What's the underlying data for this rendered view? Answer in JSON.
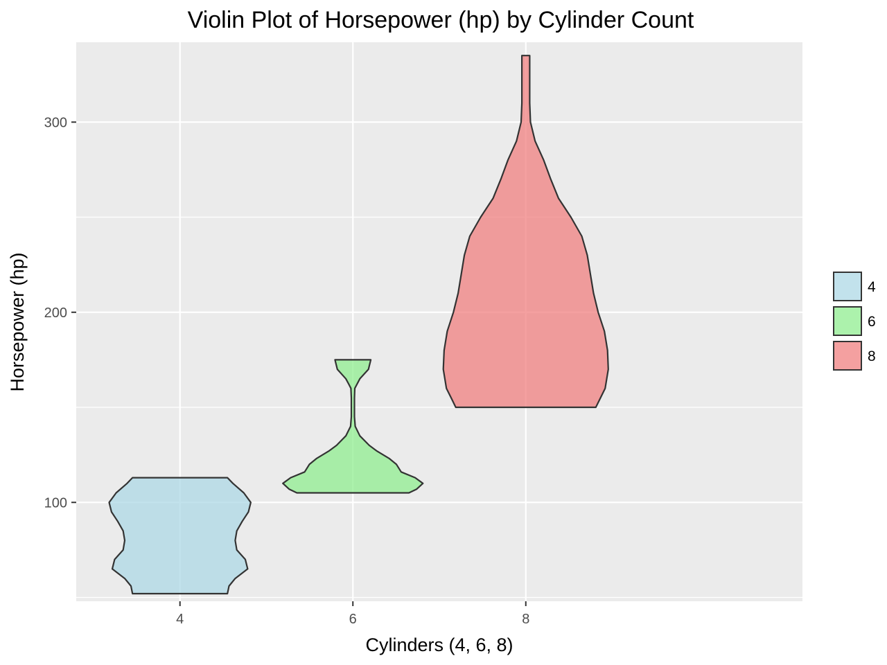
{
  "chart_data": {
    "type": "violin",
    "title": "Violin Plot of Horsepower (hp) by Cylinder Count",
    "xlabel": "Cylinders (4, 6, 8)",
    "ylabel": "Horsepower (hp)",
    "categories": [
      "4",
      "6",
      "8"
    ],
    "x_ticks": [
      "4",
      "6",
      "8"
    ],
    "y_ticks": [
      100,
      200,
      300
    ],
    "y_tick_labels": [
      "100",
      "200",
      "300"
    ],
    "ylim": [
      48,
      342
    ],
    "grid": true,
    "legend_position": "right",
    "series": [
      {
        "name": "4",
        "color": "#add8e6",
        "min": 52,
        "max": 113,
        "density": [
          [
            52,
            0.61
          ],
          [
            56,
            0.63
          ],
          [
            60,
            0.71
          ],
          [
            65,
            0.87
          ],
          [
            70,
            0.84
          ],
          [
            75,
            0.73
          ],
          [
            80,
            0.71
          ],
          [
            85,
            0.73
          ],
          [
            90,
            0.8
          ],
          [
            95,
            0.88
          ],
          [
            100,
            0.91
          ],
          [
            105,
            0.82
          ],
          [
            110,
            0.68
          ],
          [
            113,
            0.61
          ]
        ]
      },
      {
        "name": "6",
        "color": "#90ee90",
        "min": 105,
        "max": 175,
        "density": [
          [
            105,
            0.72
          ],
          [
            107,
            0.82
          ],
          [
            110,
            0.9
          ],
          [
            113,
            0.8
          ],
          [
            116,
            0.62
          ],
          [
            120,
            0.56
          ],
          [
            123,
            0.47
          ],
          [
            127,
            0.31
          ],
          [
            130,
            0.21
          ],
          [
            135,
            0.09
          ],
          [
            140,
            0.03
          ],
          [
            145,
            0.02
          ],
          [
            150,
            0.02
          ],
          [
            155,
            0.02
          ],
          [
            160,
            0.025
          ],
          [
            162,
            0.05
          ],
          [
            165,
            0.09
          ],
          [
            170,
            0.2
          ],
          [
            175,
            0.23
          ]
        ]
      },
      {
        "name": "8",
        "color": "#f08080",
        "min": 150,
        "max": 335,
        "density": [
          [
            150,
            0.9
          ],
          [
            155,
            0.96
          ],
          [
            160,
            1.02
          ],
          [
            170,
            1.06
          ],
          [
            180,
            1.05
          ],
          [
            190,
            1.01
          ],
          [
            200,
            0.93
          ],
          [
            210,
            0.87
          ],
          [
            220,
            0.83
          ],
          [
            230,
            0.79
          ],
          [
            240,
            0.72
          ],
          [
            250,
            0.58
          ],
          [
            260,
            0.42
          ],
          [
            270,
            0.32
          ],
          [
            280,
            0.23
          ],
          [
            290,
            0.12
          ],
          [
            300,
            0.06
          ],
          [
            310,
            0.05
          ],
          [
            320,
            0.05
          ],
          [
            335,
            0.05
          ]
        ]
      }
    ]
  }
}
